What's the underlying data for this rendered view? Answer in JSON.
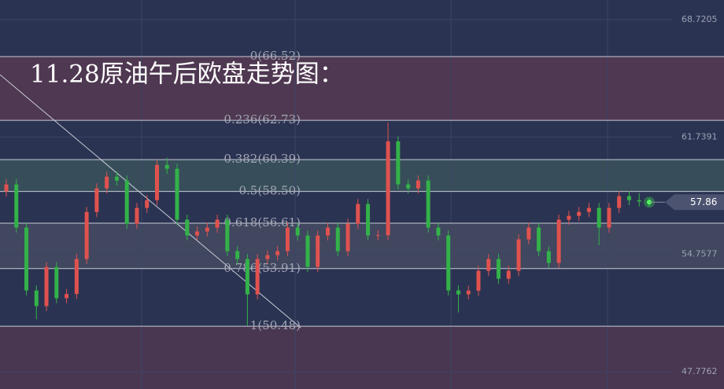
{
  "chart_data": {
    "type": "candlestick",
    "title": "11.28原油午后欧盘走势图：",
    "ylim": [
      46.749,
      69.888
    ],
    "yticks": [
      68.7205,
      61.7391,
      54.7577,
      47.7762
    ],
    "grid": true,
    "up_color": "#e0524f",
    "down_color": "#33b249",
    "last_price": 57.86,
    "fib_levels": [
      {
        "label": "0(66.52)",
        "value": 66.52
      },
      {
        "label": "0.236(62.73)",
        "value": 62.73
      },
      {
        "label": "0.382(60.39)",
        "value": 60.39
      },
      {
        "label": "0.5(58.50)",
        "value": 58.5
      },
      {
        "label": "0.618(56.61)",
        "value": 56.61
      },
      {
        "label": "0.786(53.91)",
        "value": 53.91
      },
      {
        "label": "1(50.48)",
        "value": 50.48
      }
    ],
    "open": [
      58.5,
      58.92,
      56.35,
      52.61,
      51.68,
      54.01,
      52.15,
      52.4,
      54.48,
      57.28,
      58.68,
      59.38,
      59.15,
      56.58,
      57.52,
      57.98,
      60.08,
      59.85,
      56.82,
      55.88,
      56.12,
      56.35,
      56.82,
      54.95,
      54.48,
      52.38,
      54.48,
      54.71,
      54.95,
      56.35,
      55.88,
      54.01,
      55.88,
      56.35,
      54.95,
      56.58,
      57.75,
      55.88,
      55.9,
      61.48,
      58.92,
      58.68,
      59.15,
      56.35,
      55.88,
      52.61,
      52.38,
      52.6,
      53.78,
      54.48,
      53.31,
      53.78,
      55.65,
      56.35,
      54.95,
      54.25,
      56.82,
      57.05,
      57.28,
      57.52,
      56.35,
      57.52,
      58.22,
      57.98,
      57.9
    ],
    "high": [
      59.22,
      59.22,
      56.65,
      52.91,
      54.31,
      54.31,
      52.7,
      54.78,
      57.58,
      58.98,
      59.68,
      59.68,
      59.45,
      57.82,
      58.28,
      60.38,
      60.5,
      60.15,
      57.12,
      56.42,
      56.65,
      57.12,
      57.12,
      55.25,
      54.78,
      54.78,
      55.01,
      55.25,
      56.65,
      56.65,
      56.18,
      56.18,
      56.65,
      56.65,
      56.88,
      58.05,
      58.05,
      56.2,
      62.6,
      61.78,
      59.22,
      59.45,
      59.45,
      56.65,
      56.18,
      52.91,
      52.9,
      54.08,
      54.78,
      54.78,
      54.08,
      55.95,
      56.65,
      56.65,
      55.25,
      57.12,
      57.35,
      57.58,
      57.82,
      57.82,
      57.82,
      58.52,
      58.52,
      58.4,
      58.1
    ],
    "low": [
      58.2,
      56.05,
      52.31,
      50.9,
      51.38,
      51.85,
      51.85,
      52.1,
      54.18,
      56.98,
      58.38,
      58.85,
      56.28,
      56.28,
      57.22,
      57.68,
      59.55,
      56.52,
      55.58,
      55.58,
      55.82,
      56.05,
      54.65,
      54.18,
      50.5,
      52.08,
      54.18,
      54.41,
      54.65,
      55.58,
      53.71,
      53.71,
      55.58,
      54.65,
      54.65,
      56.28,
      55.58,
      55.58,
      55.6,
      58.62,
      58.38,
      58.38,
      56.05,
      55.58,
      52.31,
      51.3,
      52.08,
      52.3,
      53.48,
      53.01,
      53.01,
      53.48,
      55.35,
      54.65,
      53.95,
      53.95,
      56.52,
      56.75,
      56.98,
      55.3,
      56.05,
      57.22,
      57.68,
      57.6,
      57.6
    ],
    "close": [
      58.92,
      56.35,
      52.61,
      51.68,
      54.01,
      52.15,
      52.4,
      54.48,
      57.28,
      58.68,
      59.38,
      59.15,
      56.58,
      57.52,
      57.98,
      60.08,
      59.85,
      56.82,
      55.88,
      56.12,
      56.35,
      56.82,
      54.95,
      54.48,
      52.38,
      54.48,
      54.71,
      54.95,
      56.35,
      55.88,
      54.01,
      55.88,
      56.35,
      54.95,
      56.58,
      57.75,
      55.88,
      55.9,
      61.48,
      58.92,
      58.68,
      59.15,
      56.35,
      55.88,
      52.61,
      52.38,
      52.6,
      53.78,
      54.48,
      53.31,
      53.78,
      55.65,
      56.35,
      54.95,
      54.25,
      56.82,
      57.05,
      57.28,
      57.52,
      56.35,
      57.52,
      58.22,
      57.98,
      57.9,
      57.86
    ]
  }
}
